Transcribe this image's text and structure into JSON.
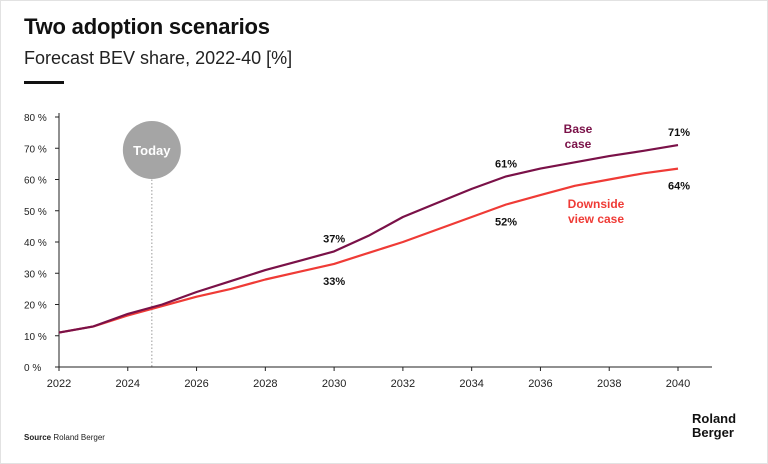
{
  "title": "Two adoption scenarios",
  "subtitle": "Forecast BEV share, 2022-40 [%]",
  "source_label": "Source",
  "source_value": "Roland Berger",
  "logo_line1": "Roland",
  "logo_line2": "Berger",
  "today_label": "Today",
  "colors": {
    "base": "#7a1148",
    "downside": "#ef3b36",
    "today": "#a5a5a5",
    "axis": "#222222"
  },
  "chart_data": {
    "type": "line",
    "title": "Two adoption scenarios",
    "subtitle": "Forecast BEV share, 2022-40 [%]",
    "xlabel": "",
    "ylabel": "",
    "xlim": [
      2022,
      2040
    ],
    "ylim": [
      0,
      80
    ],
    "x_ticks": [
      "2022",
      "2024",
      "2026",
      "2028",
      "2030",
      "2032",
      "2034",
      "2036",
      "2038",
      "2040"
    ],
    "y_ticks": [
      "0 %",
      "10 %",
      "20 %",
      "30 %",
      "40 %",
      "50 %",
      "60 %",
      "70 %",
      "80 %"
    ],
    "today_year": 2024.7,
    "series": [
      {
        "name": "Base case",
        "label_lines": [
          "Base",
          "case"
        ],
        "color": "#7a1148",
        "x": [
          2022,
          2023,
          2024,
          2025,
          2026,
          2027,
          2028,
          2029,
          2030,
          2031,
          2032,
          2033,
          2034,
          2035,
          2036,
          2037,
          2038,
          2039,
          2040
        ],
        "y": [
          11,
          13,
          17,
          20,
          24,
          27.5,
          31,
          34,
          37,
          42,
          48,
          52.5,
          57,
          61,
          63.5,
          65.5,
          67.5,
          69.2,
          71
        ]
      },
      {
        "name": "Downside view case",
        "label_lines": [
          "Downside",
          "view case"
        ],
        "color": "#ef3b36",
        "x": [
          2022,
          2023,
          2024,
          2025,
          2026,
          2027,
          2028,
          2029,
          2030,
          2031,
          2032,
          2033,
          2034,
          2035,
          2036,
          2037,
          2038,
          2039,
          2040
        ],
        "y": [
          11,
          13,
          16.5,
          19.5,
          22.5,
          25,
          28,
          30.5,
          33,
          36.5,
          40,
          44,
          48,
          52,
          55,
          58,
          60,
          62,
          63.5
        ]
      }
    ],
    "annotations": [
      {
        "series": 0,
        "year": 2030,
        "text": "37%",
        "placement": "above"
      },
      {
        "series": 1,
        "year": 2030,
        "text": "33%",
        "placement": "below"
      },
      {
        "series": 0,
        "year": 2035,
        "text": "61%",
        "placement": "above"
      },
      {
        "series": 1,
        "year": 2035,
        "text": "52%",
        "placement": "below"
      },
      {
        "series": 0,
        "year": 2040,
        "text": "71%",
        "placement": "above"
      },
      {
        "series": 1,
        "year": 2040,
        "text": "64%",
        "placement": "below"
      }
    ]
  }
}
